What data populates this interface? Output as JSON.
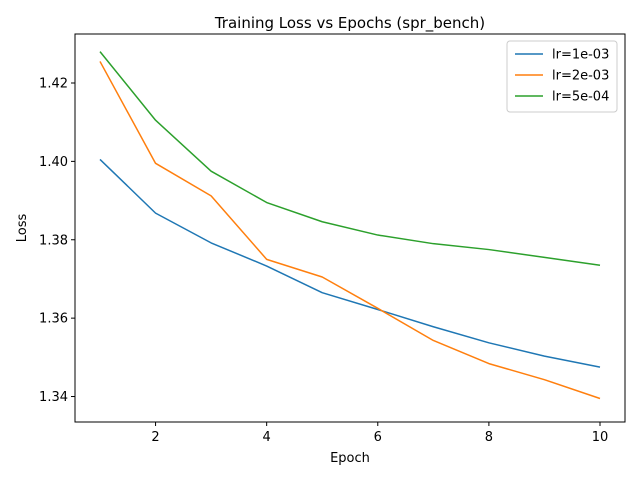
{
  "chart_data": {
    "type": "line",
    "title": "Training Loss vs Epochs (spr_bench)",
    "xlabel": "Epoch",
    "ylabel": "Loss",
    "xlim": [
      0.55,
      10.45
    ],
    "ylim": [
      1.3335,
      1.4325
    ],
    "x_ticks": [
      2,
      4,
      6,
      8,
      10
    ],
    "y_ticks": [
      1.34,
      1.36,
      1.38,
      1.4,
      1.42
    ],
    "y_tick_labels": [
      "1.34",
      "1.36",
      "1.38",
      "1.40",
      "1.42"
    ],
    "grid": false,
    "legend_position": "top-right",
    "x": [
      1,
      2,
      3,
      4,
      5,
      6,
      7,
      8,
      9,
      10
    ],
    "series": [
      {
        "name": "lr=1e-03",
        "color": "#1f77b4",
        "values": [
          1.4005,
          1.3868,
          1.3792,
          1.3733,
          1.3665,
          1.3622,
          1.3578,
          1.3537,
          1.3503,
          1.3475
        ]
      },
      {
        "name": "lr=2e-03",
        "color": "#ff7f0e",
        "values": [
          1.4255,
          1.3995,
          1.3912,
          1.375,
          1.3705,
          1.3625,
          1.3543,
          1.3484,
          1.3443,
          1.3395
        ]
      },
      {
        "name": "lr=5e-04",
        "color": "#2ca02c",
        "values": [
          1.428,
          1.4105,
          1.3975,
          1.3895,
          1.3846,
          1.3812,
          1.379,
          1.3775,
          1.3755,
          1.3735
        ]
      }
    ]
  }
}
